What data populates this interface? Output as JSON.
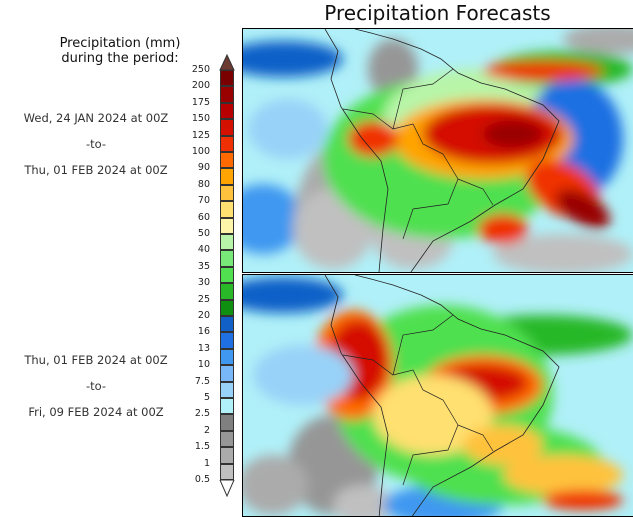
{
  "title": "Precipitation Forecasts",
  "legend": {
    "title_line1": "Precipitation (mm)",
    "title_line2": "during the period:",
    "levels": [
      "250",
      "200",
      "175",
      "150",
      "125",
      "100",
      "90",
      "80",
      "70",
      "60",
      "50",
      "40",
      "35",
      "30",
      "25",
      "20",
      "16",
      "13",
      "10",
      "7.5",
      "5",
      "2.5",
      "2",
      "1.5",
      "1",
      "0.5"
    ],
    "colors": [
      "#7a0000",
      "#990000",
      "#b80000",
      "#d41000",
      "#f03000",
      "#ff6a00",
      "#ffa400",
      "#ffc23c",
      "#ffe070",
      "#fff5a8",
      "#b8f5a8",
      "#78e878",
      "#50e050",
      "#28b828",
      "#109010",
      "#1060c8",
      "#1f70e2",
      "#4098f0",
      "#78b8f8",
      "#98d2f8",
      "#b0f0f8",
      "#808080",
      "#969696",
      "#ababab",
      "#c0c0c0"
    ],
    "top_arrow_color": "#6b3a30",
    "bottom_arrow_color": "#ffffff"
  },
  "periods": [
    {
      "start": "Wed, 24 JAN 2024 at 00Z",
      "sep": "-to-",
      "end": "Thu, 01 FEB 2024 at 00Z"
    },
    {
      "start": "Thu, 01 FEB 2024 at 00Z",
      "sep": "-to-",
      "end": "Fri, 09 FEB 2024 at 00Z"
    }
  ]
}
